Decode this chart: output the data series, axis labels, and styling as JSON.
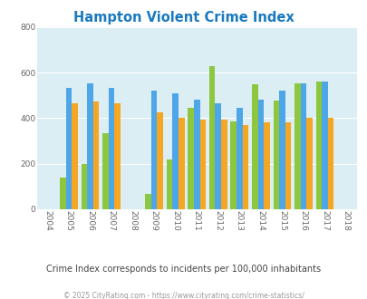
{
  "title": "Hampton Violent Crime Index",
  "years": [
    2004,
    2005,
    2006,
    2007,
    2008,
    2009,
    2010,
    2011,
    2012,
    2013,
    2014,
    2015,
    2016,
    2017,
    2018
  ],
  "hampton": [
    null,
    140,
    200,
    335,
    null,
    68,
    218,
    447,
    628,
    385,
    550,
    478,
    553,
    560,
    null
  ],
  "arkansas": [
    null,
    532,
    553,
    532,
    null,
    521,
    508,
    479,
    466,
    447,
    479,
    521,
    553,
    560,
    null
  ],
  "national": [
    null,
    464,
    474,
    466,
    null,
    426,
    402,
    392,
    392,
    370,
    380,
    383,
    400,
    400,
    null
  ],
  "hampton_color": "#8dc63f",
  "arkansas_color": "#4da6e8",
  "national_color": "#f5a623",
  "bg_color": "#daeef3",
  "ylim": [
    0,
    800
  ],
  "yticks": [
    0,
    200,
    400,
    600,
    800
  ],
  "tick_color": "#666666",
  "title_color": "#1a7abf",
  "subtitle": "Crime Index corresponds to incidents per 100,000 inhabitants",
  "footer": "© 2025 CityRating.com - https://www.cityrating.com/crime-statistics/",
  "subtitle_color": "#444444",
  "footer_color": "#999999",
  "hampton_label_color": "#7b5ea7",
  "arkansas_label_color": "#1a7abf",
  "national_label_color": "#cc7700"
}
